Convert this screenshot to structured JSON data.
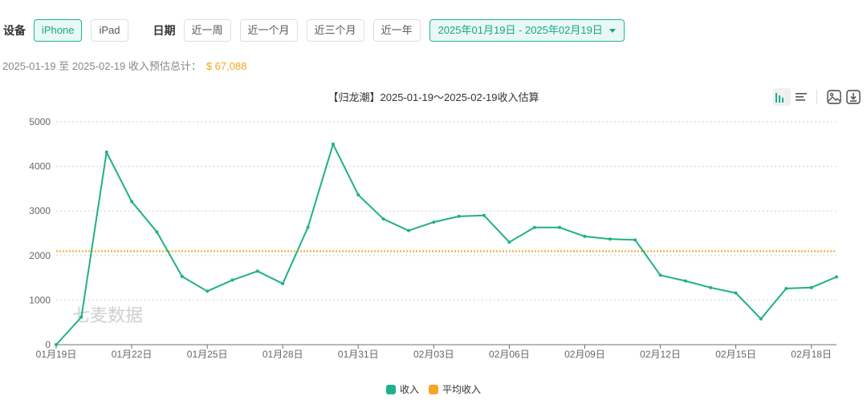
{
  "filters": {
    "device_label": "设备",
    "devices": [
      "iPhone",
      "iPad"
    ],
    "device_selected": "iPhone",
    "date_label": "日期",
    "presets": [
      "近一周",
      "近一个月",
      "近三个月",
      "近一年"
    ],
    "range_value": "2025年01月19日 - 2025年02月19日"
  },
  "summary": {
    "text": "2025-01-19 至 2025-02-19 收入预估总计：",
    "amount": "$ 67,088"
  },
  "watermark": "七麦数据",
  "toolbox": {
    "icons": [
      "bar-line-toggle-icon",
      "data-view-icon",
      "save-image-icon",
      "download-icon"
    ]
  },
  "colors": {
    "revenue": "#20b08a",
    "average": "#f5a623",
    "accent": "#1aa58a"
  },
  "chart_data": {
    "type": "line",
    "title": "【归龙潮】2025-01-19～2025-02-19收入估算",
    "x": [
      "01月19日",
      "01月20日",
      "01月21日",
      "01月22日",
      "01月23日",
      "01月24日",
      "01月25日",
      "01月26日",
      "01月27日",
      "01月28日",
      "01月29日",
      "01月30日",
      "01月31日",
      "02月01日",
      "02月02日",
      "02月03日",
      "02月04日",
      "02月05日",
      "02月06日",
      "02月07日",
      "02月08日",
      "02月09日",
      "02月10日",
      "02月11日",
      "02月12日",
      "02月13日",
      "02月14日",
      "02月15日",
      "02月16日",
      "02月17日",
      "02月18日",
      "02月19日"
    ],
    "x_tick_labels": [
      "01月19日",
      "01月22日",
      "01月25日",
      "01月28日",
      "01月31日",
      "02月03日",
      "02月06日",
      "02月09日",
      "02月12日",
      "02月15日",
      "02月18日"
    ],
    "series": [
      {
        "name": "收入",
        "values": [
          0,
          620,
          4320,
          3210,
          2530,
          1530,
          1200,
          1450,
          1650,
          1370,
          2630,
          4500,
          3360,
          2820,
          2560,
          2750,
          2880,
          2900,
          2300,
          2630,
          2630,
          2430,
          2370,
          2350,
          1560,
          1430,
          1280,
          1160,
          580,
          1260,
          1280,
          1520
        ]
      }
    ],
    "average": {
      "name": "平均收入",
      "value": 2097
    },
    "ylim": [
      0,
      5000
    ],
    "y_ticks": [
      0,
      1000,
      2000,
      3000,
      4000,
      5000
    ],
    "grid": true,
    "legend_position": "bottom-center"
  }
}
